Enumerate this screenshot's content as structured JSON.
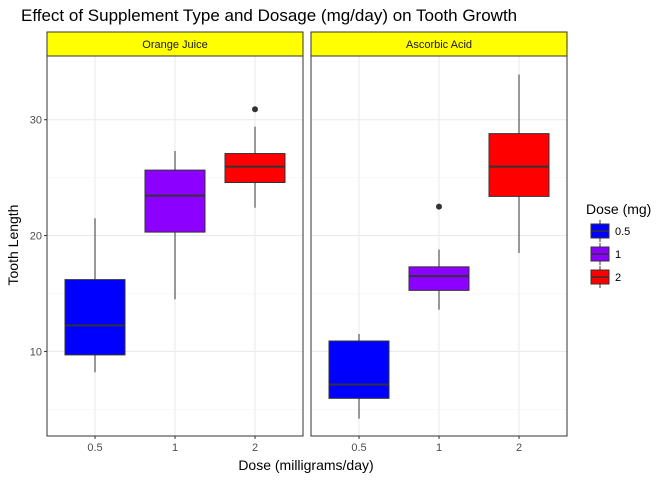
{
  "chart_data": {
    "type": "boxplot",
    "title": "Effect of Supplement Type and Dosage (mg/day) on Tooth Growth",
    "xlabel": "Dose (milligrams/day)",
    "ylabel": "Tooth Length",
    "categories": [
      "0.5",
      "1",
      "2"
    ],
    "ylim": [
      2.7,
      35.5
    ],
    "y_ticks": [
      10,
      20,
      30
    ],
    "grid": true,
    "legend": {
      "title": "Dose (mg)",
      "position": "right",
      "entries": [
        {
          "label": "0.5",
          "color": "#0000ff"
        },
        {
          "label": "1",
          "color": "#8b00ff"
        },
        {
          "label": "2",
          "color": "#ff0000"
        }
      ]
    },
    "facets": [
      {
        "label": "Orange Juice",
        "boxes": [
          {
            "dose": "0.5",
            "whisker_low": 8.2,
            "q1": 9.7,
            "median": 12.25,
            "q3": 16.2,
            "whisker_high": 21.5,
            "outliers": []
          },
          {
            "dose": "1",
            "whisker_low": 14.5,
            "q1": 20.3,
            "median": 23.45,
            "q3": 25.65,
            "whisker_high": 27.3,
            "outliers": []
          },
          {
            "dose": "2",
            "whisker_low": 22.4,
            "q1": 24.58,
            "median": 25.95,
            "q3": 27.08,
            "whisker_high": 29.4,
            "outliers": [
              30.9
            ]
          }
        ]
      },
      {
        "label": "Ascorbic Acid",
        "boxes": [
          {
            "dose": "0.5",
            "whisker_low": 4.2,
            "q1": 5.95,
            "median": 7.15,
            "q3": 10.9,
            "whisker_high": 11.5,
            "outliers": []
          },
          {
            "dose": "1",
            "whisker_low": 13.6,
            "q1": 15.27,
            "median": 16.5,
            "q3": 17.3,
            "whisker_high": 18.8,
            "outliers": [
              22.5
            ]
          },
          {
            "dose": "2",
            "whisker_low": 18.5,
            "q1": 23.38,
            "median": 25.95,
            "q3": 28.8,
            "whisker_high": 33.9,
            "outliers": []
          }
        ]
      }
    ],
    "colors": {
      "strip_fill": "#ffff00",
      "panel_border": "#333333",
      "grid_major": "#ebebeb",
      "grid_minor": "#f5f5f5",
      "box_outline": "#333333"
    }
  }
}
